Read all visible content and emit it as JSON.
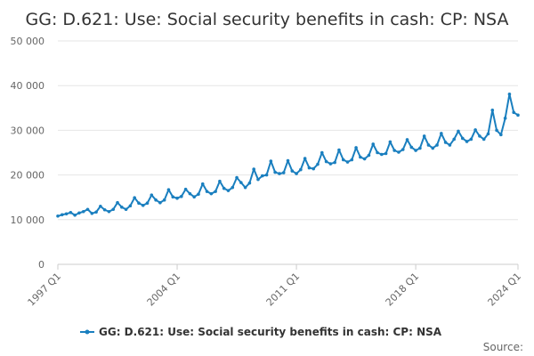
{
  "chart_data": {
    "type": "line",
    "title": "GG: D.621: Use: Social security benefits in cash: CP: NSA",
    "source_label": "Source:",
    "xlabel": "",
    "ylabel": "",
    "ylim": [
      0,
      50000
    ],
    "yticks": [
      0,
      10000,
      20000,
      30000,
      40000,
      50000
    ],
    "ytick_labels": [
      "0",
      "10 000",
      "20 000",
      "30 000",
      "40 000",
      "50 000"
    ],
    "xtick_labels": [
      "1997 Q1",
      "2004 Q1",
      "2011 Q1",
      "2018 Q1",
      "2024 Q1"
    ],
    "xtick_index": [
      0,
      28,
      56,
      84,
      108
    ],
    "grid": true,
    "legend_position": "bottom",
    "color": "#1a7fbf",
    "series": [
      {
        "name": "GG: D.621: Use: Social security benefits in cash: CP: NSA",
        "x": [
          "1997 Q1",
          "1997 Q2",
          "1997 Q3",
          "1997 Q4",
          "1998 Q1",
          "1998 Q2",
          "1998 Q3",
          "1998 Q4",
          "1999 Q1",
          "1999 Q2",
          "1999 Q3",
          "1999 Q4",
          "2000 Q1",
          "2000 Q2",
          "2000 Q3",
          "2000 Q4",
          "2001 Q1",
          "2001 Q2",
          "2001 Q3",
          "2001 Q4",
          "2002 Q1",
          "2002 Q2",
          "2002 Q3",
          "2002 Q4",
          "2003 Q1",
          "2003 Q2",
          "2003 Q3",
          "2003 Q4",
          "2004 Q1",
          "2004 Q2",
          "2004 Q3",
          "2004 Q4",
          "2005 Q1",
          "2005 Q2",
          "2005 Q3",
          "2005 Q4",
          "2006 Q1",
          "2006 Q2",
          "2006 Q3",
          "2006 Q4",
          "2007 Q1",
          "2007 Q2",
          "2007 Q3",
          "2007 Q4",
          "2008 Q1",
          "2008 Q2",
          "2008 Q3",
          "2008 Q4",
          "2009 Q1",
          "2009 Q2",
          "2009 Q3",
          "2009 Q4",
          "2010 Q1",
          "2010 Q2",
          "2010 Q3",
          "2010 Q4",
          "2011 Q1",
          "2011 Q2",
          "2011 Q3",
          "2011 Q4",
          "2012 Q1",
          "2012 Q2",
          "2012 Q3",
          "2012 Q4",
          "2013 Q1",
          "2013 Q2",
          "2013 Q3",
          "2013 Q4",
          "2014 Q1",
          "2014 Q2",
          "2014 Q3",
          "2014 Q4",
          "2015 Q1",
          "2015 Q2",
          "2015 Q3",
          "2015 Q4",
          "2016 Q1",
          "2016 Q2",
          "2016 Q3",
          "2016 Q4",
          "2017 Q1",
          "2017 Q2",
          "2017 Q3",
          "2017 Q4",
          "2018 Q1",
          "2018 Q2",
          "2018 Q3",
          "2018 Q4",
          "2019 Q1",
          "2019 Q2",
          "2019 Q3",
          "2019 Q4",
          "2020 Q1",
          "2020 Q2",
          "2020 Q3",
          "2020 Q4",
          "2021 Q1",
          "2021 Q2",
          "2021 Q3",
          "2021 Q4",
          "2022 Q1",
          "2022 Q2",
          "2022 Q3",
          "2022 Q4",
          "2023 Q1",
          "2023 Q2",
          "2023 Q3",
          "2023 Q4",
          "2024 Q1"
        ],
        "values": [
          10800,
          11100,
          11300,
          11600,
          11000,
          11500,
          11800,
          12300,
          11400,
          11700,
          13000,
          12200,
          11800,
          12300,
          13800,
          12800,
          12300,
          13100,
          14900,
          13700,
          13200,
          13700,
          15500,
          14400,
          13800,
          14400,
          16700,
          15100,
          14800,
          15200,
          16800,
          15800,
          15100,
          15700,
          18000,
          16300,
          15800,
          16300,
          18600,
          17000,
          16500,
          17200,
          19400,
          18300,
          17200,
          18200,
          21300,
          19000,
          19800,
          20000,
          23100,
          20600,
          20300,
          20500,
          23200,
          20900,
          20300,
          21200,
          23700,
          21600,
          21400,
          22400,
          25000,
          23000,
          22500,
          22800,
          25600,
          23400,
          22900,
          23400,
          26100,
          24000,
          23600,
          24400,
          26900,
          25000,
          24600,
          24800,
          27400,
          25500,
          25100,
          25700,
          27900,
          26200,
          25500,
          26000,
          28700,
          26700,
          26000,
          26700,
          29300,
          27300,
          26700,
          28000,
          29800,
          28200,
          27500,
          28000,
          30100,
          28700,
          28000,
          29200,
          34500,
          30000,
          29000,
          32700,
          38100,
          34000,
          33400
        ]
      }
    ]
  }
}
